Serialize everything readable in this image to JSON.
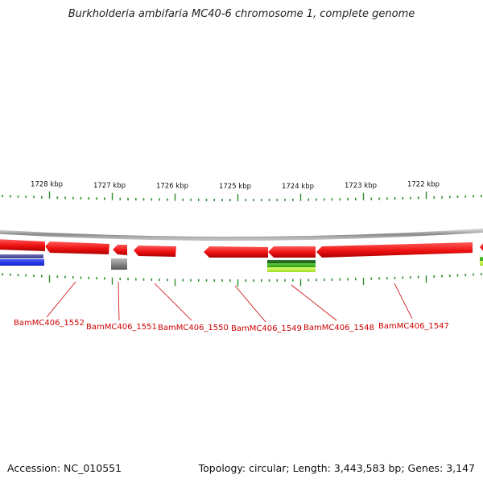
{
  "title": "Burkholderia ambifaria MC40-6 chromosome 1, complete genome",
  "footer": {
    "accession": "Accession: NC_010551",
    "summary": "Topology: circular; Length: 3,443,583 bp; Genes: 3,147"
  },
  "colors": {
    "gene_forward": "#ee1111",
    "gene_label": "#cc0000",
    "tick": "#2e8b2e",
    "backbone": "#888888",
    "track_blue": "#2233cc",
    "track_gray": "#777777",
    "track_green": "#33aa22",
    "track_lime": "#aaee33"
  },
  "scale_ticks": [
    {
      "label": "1728 kbp",
      "kbp": 1728
    },
    {
      "label": "1727 kbp",
      "kbp": 1727
    },
    {
      "label": "1726 kbp",
      "kbp": 1726
    },
    {
      "label": "1725 kbp",
      "kbp": 1725
    },
    {
      "label": "1724 kbp",
      "kbp": 1724
    },
    {
      "label": "1723 kbp",
      "kbp": 1723
    },
    {
      "label": "1722 kbp",
      "kbp": 1722
    }
  ],
  "genes": [
    {
      "label": "BamMC406_1552",
      "strand": "-"
    },
    {
      "label": "BamMC406_1551",
      "strand": "-"
    },
    {
      "label": "BamMC406_1550",
      "strand": "-"
    },
    {
      "label": "BamMC406_1549",
      "strand": "-"
    },
    {
      "label": "BamMC406_1548",
      "strand": "-"
    },
    {
      "label": "BamMC406_1547",
      "strand": "-"
    }
  ]
}
